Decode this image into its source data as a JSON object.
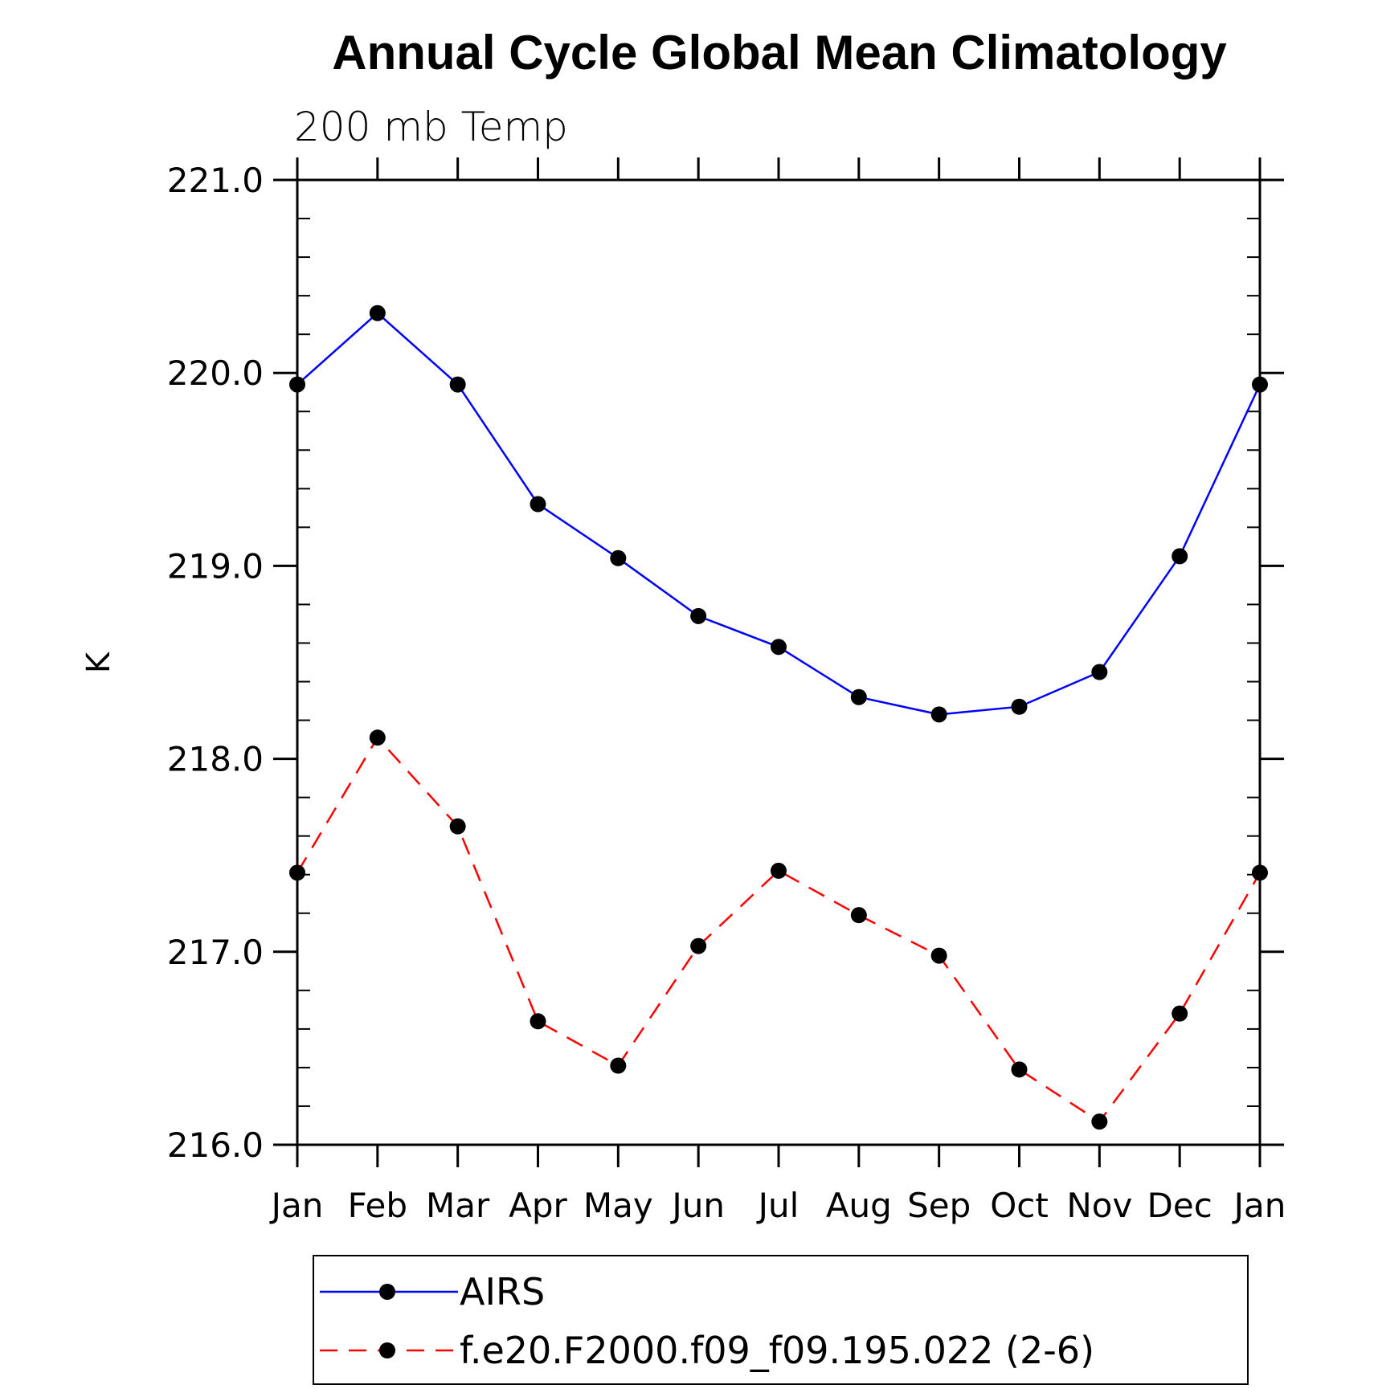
{
  "chart_data": {
    "type": "line",
    "title": "Annual Cycle Global Mean Climatology",
    "subtitle": "200 mb Temp",
    "xlabel": "",
    "ylabel": "K",
    "categories": [
      "Jan",
      "Feb",
      "Mar",
      "Apr",
      "May",
      "Jun",
      "Jul",
      "Aug",
      "Sep",
      "Oct",
      "Nov",
      "Dec",
      "Jan"
    ],
    "ylim": [
      216.0,
      221.0
    ],
    "yticks": [
      "216.0",
      "217.0",
      "218.0",
      "219.0",
      "220.0",
      "221.0"
    ],
    "yminor_step": 0.2,
    "grid": false,
    "legend_position": "bottom",
    "series": [
      {
        "name": "AIRS",
        "color": "#0000ff",
        "style": "solid",
        "marker": "circle",
        "values": [
          219.94,
          220.31,
          219.94,
          219.32,
          219.04,
          218.74,
          218.58,
          218.32,
          218.23,
          218.27,
          218.45,
          219.05,
          219.94
        ]
      },
      {
        "name": "f.e20.F2000.f09_f09.195.022 (2-6)",
        "color": "#ff0000",
        "style": "dashed",
        "marker": "circle",
        "values": [
          217.41,
          218.11,
          217.65,
          216.64,
          216.41,
          217.03,
          217.42,
          217.19,
          216.98,
          216.39,
          216.12,
          216.68,
          217.41
        ]
      }
    ]
  }
}
